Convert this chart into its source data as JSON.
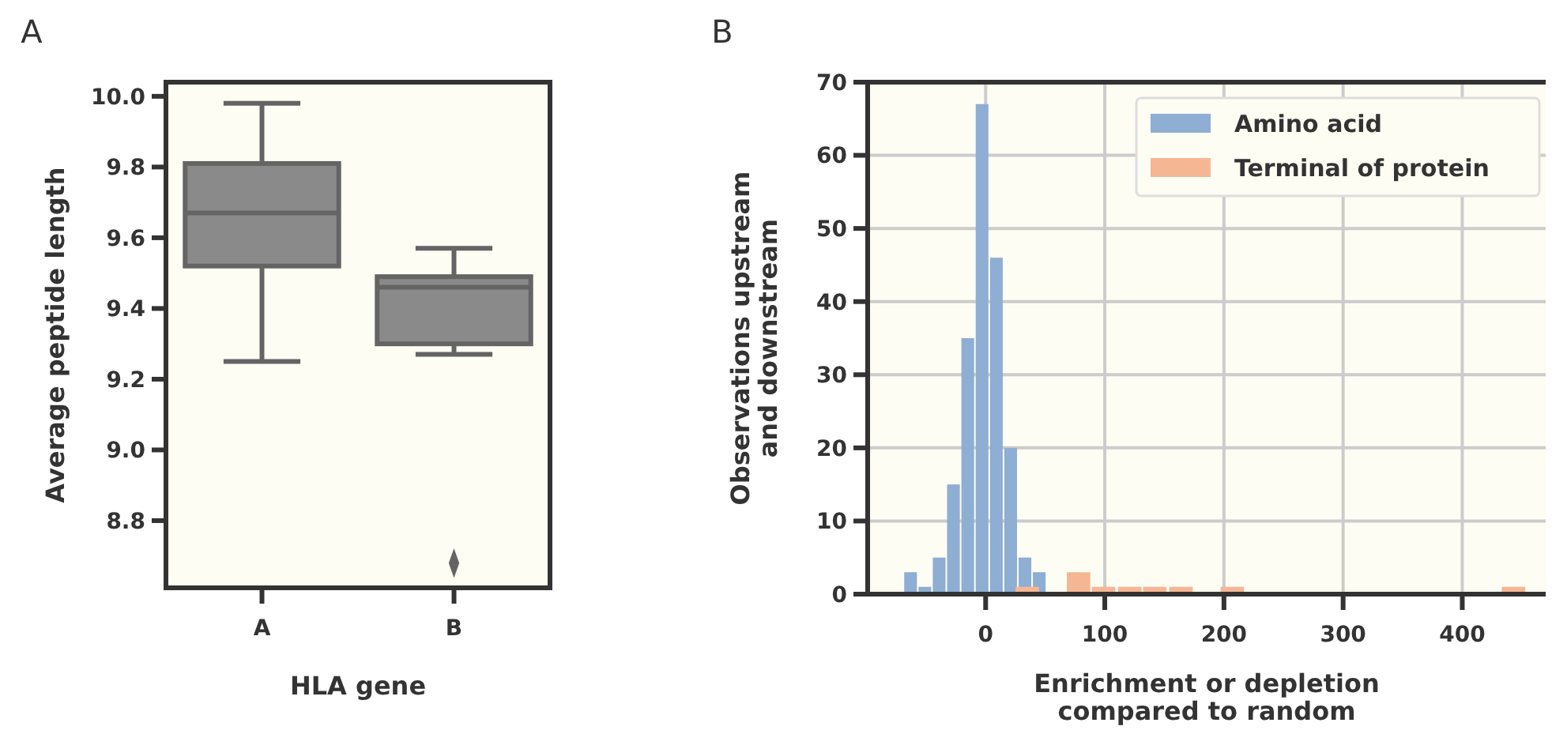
{
  "chart_data": [
    {
      "type": "box",
      "title": "A",
      "xlabel": "HLA gene",
      "ylabel": "Average peptide length",
      "categories": [
        "A",
        "B"
      ],
      "color": "#8a8a8a",
      "ylim": [
        8.61,
        10.04
      ],
      "yticks": [
        8.8,
        {
          "value": 9.0,
          "label": "9.0"
        },
        9.2,
        9.4,
        9.6,
        9.8,
        {
          "value": 10.0,
          "label": "10.0"
        }
      ],
      "grid": false,
      "marker": "diamond",
      "boxes": [
        {
          "low": 9.25,
          "q1": 9.52,
          "median": 9.67,
          "q3": 9.81,
          "high": 9.98
        },
        {
          "low": 9.27,
          "q1": 9.3,
          "median": 9.46,
          "q3": 9.49,
          "high": 9.57,
          "outliers": [
            8.68
          ]
        }
      ]
    },
    {
      "type": "bar",
      "title": "B",
      "xlabel": "Enrichment or depletion\ncompared to random",
      "ylabel": "Observations upstream\nand downstream",
      "xlim": [
        -99,
        470
      ],
      "xticks": [
        0,
        100,
        200,
        300,
        400
      ],
      "ylim": [
        0,
        70
      ],
      "yticks": [
        0,
        10,
        20,
        30,
        40,
        50,
        60,
        70
      ],
      "grid": true,
      "legend": "top right",
      "series": [
        {
          "name": "Amino acid",
          "color": "#8eaed3",
          "x": [
            -63,
            -51,
            -39,
            -27,
            -15,
            -3,
            9,
            21,
            33,
            45
          ],
          "values": [
            3,
            1,
            5,
            15,
            35,
            67,
            46,
            20,
            5,
            3
          ]
        },
        {
          "name": "Terminal of protein",
          "color": "#f5b793",
          "x": [
            35,
            78,
            99,
            121,
            142,
            164,
            207,
            443
          ],
          "values": [
            1,
            3,
            1,
            1,
            1,
            1,
            1,
            1
          ]
        }
      ]
    }
  ]
}
